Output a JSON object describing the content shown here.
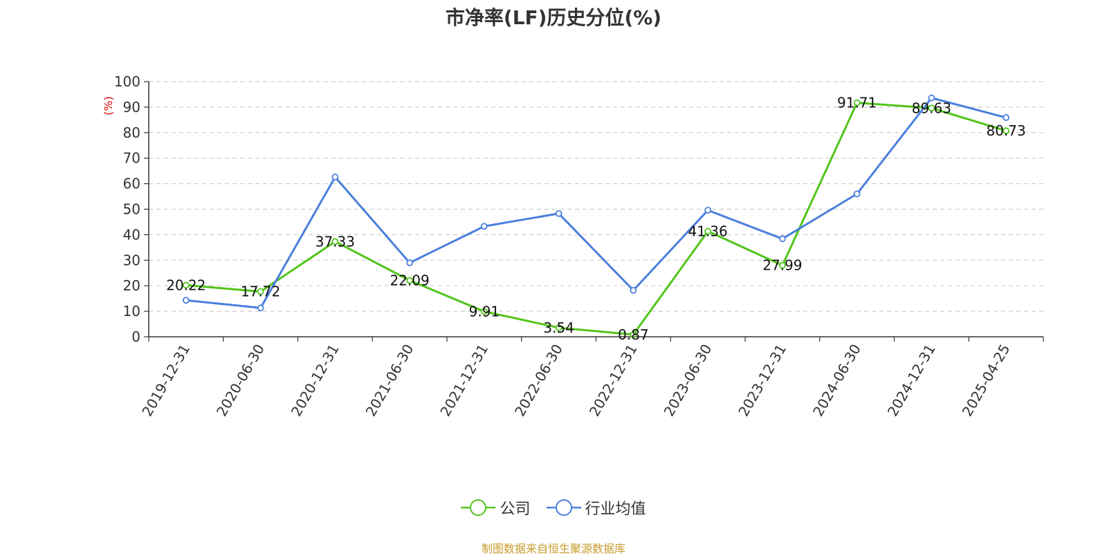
{
  "title": "市净率(LF)历史分位(%)",
  "source": "制图数据来自恒生聚源数据库",
  "colors": {
    "company": "#52c41a",
    "industry": "#4a7fdd",
    "source": "#c89b2c",
    "ylabel": "#e00000"
  },
  "chart_data": {
    "type": "line",
    "title": "市净率(LF)历史分位(%)",
    "xlabel": "",
    "ylabel": "(%)",
    "ylim": [
      0,
      100
    ],
    "yticks": [
      0,
      10,
      20,
      30,
      40,
      50,
      60,
      70,
      80,
      90,
      100
    ],
    "grid": true,
    "legend_position": "bottom",
    "categories": [
      "2019-12-31",
      "2020-06-30",
      "2020-12-31",
      "2021-06-30",
      "2021-12-31",
      "2022-06-30",
      "2022-12-31",
      "2023-06-30",
      "2023-12-31",
      "2024-06-30",
      "2024-12-31",
      "2025-04-25"
    ],
    "series": [
      {
        "name": "公司",
        "values": [
          20.22,
          17.72,
          37.33,
          22.09,
          9.91,
          3.54,
          0.87,
          41.36,
          27.99,
          91.71,
          89.63,
          80.73
        ],
        "labels": [
          "20.22",
          "17.72",
          "37.33",
          "22.09",
          "9.91",
          "3.54",
          "0.87",
          "41.36",
          "27.99",
          "91.71",
          "89.63",
          "80.73"
        ]
      },
      {
        "name": "行业均值",
        "values": [
          14.3,
          11.3,
          62.6,
          29.0,
          43.3,
          48.3,
          18.2,
          49.6,
          38.4,
          56.0,
          93.6,
          85.9
        ]
      }
    ]
  }
}
